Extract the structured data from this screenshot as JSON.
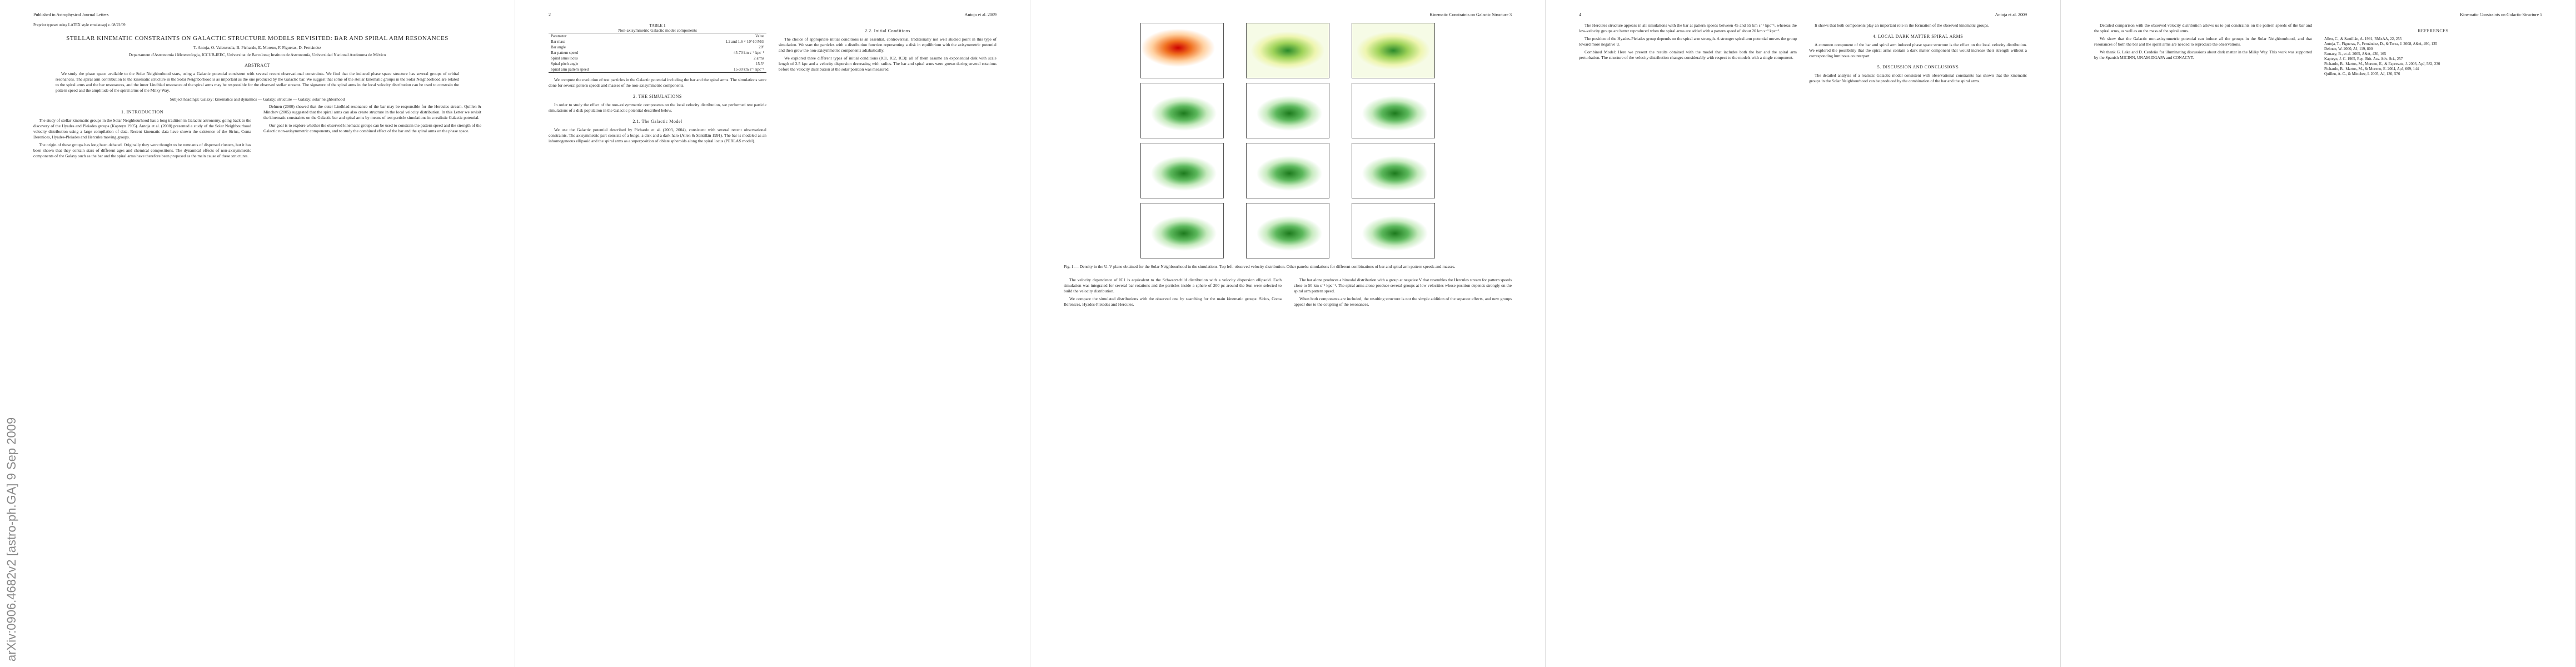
{
  "sidebar": "arXiv:0906.4682v2 [astro-ph.GA] 9 Sep 2009",
  "pages": [
    {
      "header": {
        "left": "Published in Astrophysical Journal Letters",
        "right": ""
      },
      "top": [
        {
          "note": "Preprint typeset using LATEX style emulateapj v. 08/22/09"
        },
        {
          "title": "STELLAR KINEMATIC CONSTRAINTS ON GALACTIC STRUCTURE MODELS REVISITED: BAR AND SPIRAL ARM RESONANCES"
        },
        {
          "authors": "T. Antoja, O. Valenzuela, B. Pichardo, E. Moreno, F. Figueras, D. Fernández"
        },
        {
          "affiliation": "Departament d'Astronomia i Meteorologia, ICCUB-IEEC, Universitat de Barcelona; Instituto de Astronomía, Universidad Nacional Autónoma de México"
        },
        {
          "heading": "ABSTRACT"
        },
        {
          "abstract": "We study the phase space available to the Solar Neighborhood stars, using a Galactic potential consistent with several recent observational constraints. We find that the induced phase space structure has several groups of orbital resonances. The spiral arm contribution to the kinematic structure in the Solar Neighborhood is as important as the one produced by the Galactic bar. We suggest that some of the stellar kinematic groups in the Solar Neighborhood are related to the spiral arms and the bar resonances, and the inner Lindblad resonance of the spiral arms may be responsible for the observed stellar streams. The signature of the spiral arms in the local velocity distribution can be used to constrain the pattern speed and the amplitude of the spiral arms of the Milky Way."
        },
        {
          "keywords": "Subject headings: Galaxy: kinematics and dynamics — Galaxy: structure — Galaxy: solar neighborhood"
        }
      ],
      "columns": [
        [
          {
            "heading": "1. INTRODUCTION"
          },
          {
            "paragraph": "The study of stellar kinematic groups in the Solar Neighbourhood has a long tradition in Galactic astronomy, going back to the discovery of the Hyades and Pleiades groups (Kapteyn 1905). Antoja et al. (2008) presented a study of the Solar Neighbourhood velocity distribution using a large compilation of data. Recent kinematic data have shown the existence of the Sirius, Coma Berenices, Hyades-Pleiades and Hercules moving groups."
          },
          {
            "paragraph": "The origin of these groups has long been debated. Originally they were thought to be remnants of dispersed clusters, but it has been shown that they contain stars of different ages and chemical compositions. The dynamical effects of non-axisymmetric components of the Galaxy such as the bar and the spiral arms have therefore been proposed as the main cause of these structures."
          }
        ],
        [
          {
            "paragraph": "Dehnen (2000) showed that the outer Lindblad resonance of the bar may be responsible for the Hercules stream. Quillen & Minchev (2005) suggested that the spiral arms can also create structure in the local velocity distribution. In this Letter we revisit the kinematic constraints on the Galactic bar and spiral arms by means of test particle simulations in a realistic Galactic potential."
          },
          {
            "paragraph": "Our goal is to explore whether the observed kinematic groups can be used to constrain the pattern speed and the strength of the Galactic non-axisymmetric components, and to study the combined effect of the bar and the spiral arms on the phase space."
          }
        ]
      ]
    },
    {
      "header": {
        "left": "2",
        "right": "Antoja et al. 2009"
      },
      "top": [],
      "columns": [
        [
          {
            "table": {
              "title": "TABLE 1",
              "caption": "Non-axisymmetric Galactic model components",
              "rows": [
                [
                  "Parameter",
                  "Value"
                ],
                [
                  "Bar mass",
                  "1.2 and 1.6 × 10^10 M⊙"
                ],
                [
                  "Bar angle",
                  "20°"
                ],
                [
                  "Bar pattern speed",
                  "45-70 km s⁻¹ kpc⁻¹"
                ],
                [
                  "Spiral arms locus",
                  "2 arms"
                ],
                [
                  "Spiral pitch angle",
                  "15.5°"
                ],
                [
                  "Spiral arm pattern speed",
                  "15-30 km s⁻¹ kpc⁻¹"
                ]
              ]
            }
          },
          {
            "paragraph": "We compute the evolution of test particles in the Galactic potential including the bar and the spiral arms. The simulations were done for several pattern speeds and masses of the non-axisymmetric components."
          },
          {
            "heading": "2. THE SIMULATIONS"
          },
          {
            "paragraph": "In order to study the effect of the non-axisymmetric components on the local velocity distribution, we performed test particle simulations of a disk population in the Galactic potential described below."
          },
          {
            "heading": "2.1. The Galactic Model"
          },
          {
            "paragraph": "We use the Galactic potential described by Pichardo et al. (2003, 2004), consistent with several recent observational constraints. The axisymmetric part consists of a bulge, a disk and a dark halo (Allen & Santillán 1991). The bar is modeled as an inhomogeneous ellipsoid and the spiral arms as a superposition of oblate spheroids along the spiral locus (PERLAS model)."
          }
        ],
        [
          {
            "heading": "2.2. Initial Conditions"
          },
          {
            "paragraph": "The choice of appropriate initial conditions is an essential, controversial, traditionally not well studied point in this type of simulation. We start the particles with a distribution function representing a disk in equilibrium with the axisymmetric potential and then grow the non-axisymmetric components adiabatically."
          },
          {
            "paragraph": "We explored three different types of initial conditions (IC1, IC2, IC3): all of them assume an exponential disk with scale length of 2.5 kpc and a velocity dispersion decreasing with radius. The bar and spiral arms were grown during several rotations before the velocity distribution at the solar position was measured."
          }
        ]
      ]
    },
    {
      "header": {
        "left": "",
        "right": "Kinematic Constraints on Galactic Structure    3"
      },
      "top": [
        {
          "figure": "panels"
        },
        {
          "caption": "Fig. 1.— Density in the U–V plane obtained for the Solar Neighbourhood in the simulations. Top left: observed velocity distribution. Other panels: simulations for different combinations of bar and spiral arm pattern speeds and masses."
        }
      ],
      "columns": [
        [
          {
            "paragraph": "The velocity dependence of IC1 is equivalent to the Schwarzschild distribution with a velocity dispersion ellipsoid. Each simulation was integrated for several bar rotations and the particles inside a sphere of 200 pc around the Sun were selected to build the velocity distribution."
          },
          {
            "paragraph": "We compare the simulated distributions with the observed one by searching for the main kinematic groups: Sirius, Coma Berenices, Hyades-Pleiades and Hercules."
          }
        ],
        [
          {
            "paragraph": "The bar alone produces a bimodal distribution with a group at negative V that resembles the Hercules stream for pattern speeds close to 50 km s⁻¹ kpc⁻¹. The spiral arms alone produce several groups at low velocities whose position depends strongly on the spiral arm pattern speed."
          },
          {
            "paragraph": "When both components are included, the resulting structure is not the simple addition of the separate effects, and new groups appear due to the coupling of the resonances."
          }
        ]
      ]
    },
    {
      "header": {
        "left": "4",
        "right": "Antoja et al. 2009"
      },
      "top": [],
      "columns": [
        [
          {
            "paragraph": "The Hercules structure appears in all simulations with the bar at pattern speeds between 45 and 55 km s⁻¹ kpc⁻¹, whereas the low-velocity groups are better reproduced when the spiral arms are added with a pattern speed of about 20 km s⁻¹ kpc⁻¹."
          },
          {
            "paragraph": "The position of the Hyades-Pleiades group depends on the spiral arm strength. A stronger spiral arm potential moves the group toward more negative U."
          },
          {
            "paragraph": "Combined Model: Here we present the results obtained with the model that includes both the bar and the spiral arm perturbation. The structure of the velocity distribution changes considerably with respect to the models with a single component."
          }
        ],
        [
          {
            "paragraph": "It shows that both components play an important role in the formation of the observed kinematic groups."
          },
          {
            "heading": "4. LOCAL DARK MATTER SPIRAL ARMS"
          },
          {
            "paragraph": "A common component of the bar and spiral arm induced phase space structure is the effect on the local velocity distribution. We explored the possibility that the spiral arms contain a dark matter component that would increase their strength without a corresponding luminous counterpart."
          },
          {
            "heading": "5. DISCUSSION AND CONCLUSIONS"
          },
          {
            "paragraph": "The detailed analysis of a realistic Galactic model consistent with observational constraints has shown that the kinematic groups in the Solar Neighbourhood can be produced by the combination of the bar and the spiral arms."
          }
        ]
      ]
    },
    {
      "header": {
        "left": "",
        "right": "Kinematic Constraints on Galactic Structure    5"
      },
      "top": [],
      "columns": [
        [
          {
            "paragraph": "Detailed comparison with the observed velocity distribution allows us to put constraints on the pattern speeds of the bar and the spiral arms, as well as on the mass of the spiral arms."
          },
          {
            "paragraph": "We show that the Galactic non-axisymmetric potential can induce all the groups in the Solar Neighbourhood, and that resonances of both the bar and the spiral arms are needed to reproduce the observations."
          },
          {
            "paragraph": "We thank G. Lake and D. Cerdeño for illuminating discussions about dark matter in the Milky Way. This work was supported by the Spanish MICINN, UNAM-DGAPA and CONACYT."
          }
        ],
        [
          {
            "heading": "REFERENCES"
          },
          {
            "reference": "Allen, C., & Santillán, A. 1991, RMxAA, 22, 255"
          },
          {
            "reference": "Antoja, T., Figueras, F., Fernández, D., & Torra, J. 2008, A&A, 490, 135"
          },
          {
            "reference": "Dehnen, W. 2000, AJ, 119, 800"
          },
          {
            "reference": "Famaey, B., et al. 2005, A&A, 430, 165"
          },
          {
            "reference": "Kapteyn, J. C. 1905, Rep. Brit. Ass. Adv. Sci., 257"
          },
          {
            "reference": "Pichardo, B., Martos, M., Moreno, E., & Espresate, J. 2003, ApJ, 582, 230"
          },
          {
            "reference": "Pichardo, B., Martos, M., & Moreno, E. 2004, ApJ, 609, 144"
          },
          {
            "reference": "Quillen, A. C., & Minchev, I. 2005, AJ, 130, 576"
          }
        ]
      ]
    }
  ]
}
